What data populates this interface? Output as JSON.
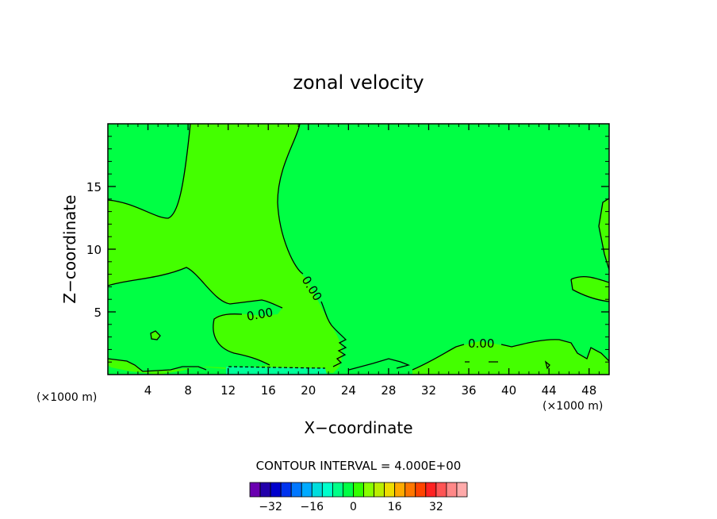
{
  "chart_data": {
    "type": "contour",
    "title": "zonal velocity",
    "xlabel": "X−coordinate",
    "ylabel": "Z−coordinate",
    "x_unit_left": "(×1000 m)",
    "x_unit_right": "(×1000 m)",
    "xlim": [
      0,
      50
    ],
    "ylim": [
      0,
      20
    ],
    "x_ticks": [
      4,
      8,
      12,
      16,
      20,
      24,
      28,
      32,
      36,
      40,
      44,
      48
    ],
    "y_ticks": [
      5,
      10,
      15
    ],
    "contour_labels": [
      "0.00",
      "0.00",
      "0.00"
    ],
    "contour_interval_text": "CONTOUR INTERVAL = 4.000E+00",
    "colorbar": {
      "colors": [
        "#6a00b0",
        "#2200aa",
        "#0000cc",
        "#0033ee",
        "#0077ff",
        "#00aaff",
        "#00dddd",
        "#00ffcc",
        "#00ff88",
        "#00ff44",
        "#33ff00",
        "#88ff00",
        "#bbee00",
        "#eedd00",
        "#ffaa00",
        "#ff7700",
        "#ff4400",
        "#ff2222",
        "#ff5555",
        "#ff8888",
        "#ffaaaa"
      ],
      "tick_labels": [
        "−32",
        "−16",
        "0",
        "16",
        "32"
      ],
      "tick_values": [
        -32,
        -16,
        0,
        16,
        32
      ],
      "range": [
        -40,
        44
      ]
    },
    "field_colors": {
      "zero_band": "#00ff44",
      "positive_band": "#44ff00",
      "negative_band": "#00ff99"
    }
  }
}
